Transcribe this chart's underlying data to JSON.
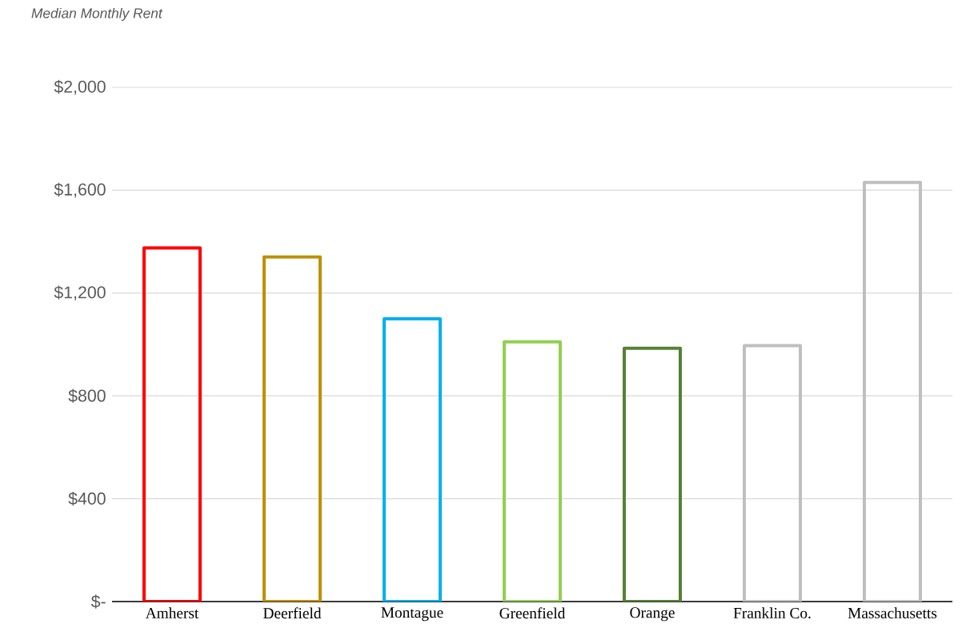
{
  "chart_data": {
    "type": "bar",
    "title": "Median Monthly Rent",
    "categories": [
      "Amherst",
      "Deerfield",
      "Montague",
      "Greenfield",
      "Orange",
      "Franklin Co.",
      "Massachusetts"
    ],
    "values": [
      1375,
      1340,
      1100,
      1010,
      985,
      995,
      1630
    ],
    "colors": [
      "#ff0000",
      "#bf9000",
      "#00b0f0",
      "#92d050",
      "#548235",
      "#bfbfbf",
      "#bfbfbf"
    ],
    "ylim": [
      0,
      2000
    ],
    "yticks": [
      {
        "value": 0,
        "label": "$-"
      },
      {
        "value": 400,
        "label": "$400"
      },
      {
        "value": 800,
        "label": "$800"
      },
      {
        "value": 1200,
        "label": "$1,200"
      },
      {
        "value": 1600,
        "label": "$1,600"
      },
      {
        "value": 2000,
        "label": "$2,000"
      }
    ],
    "grid": "y"
  }
}
